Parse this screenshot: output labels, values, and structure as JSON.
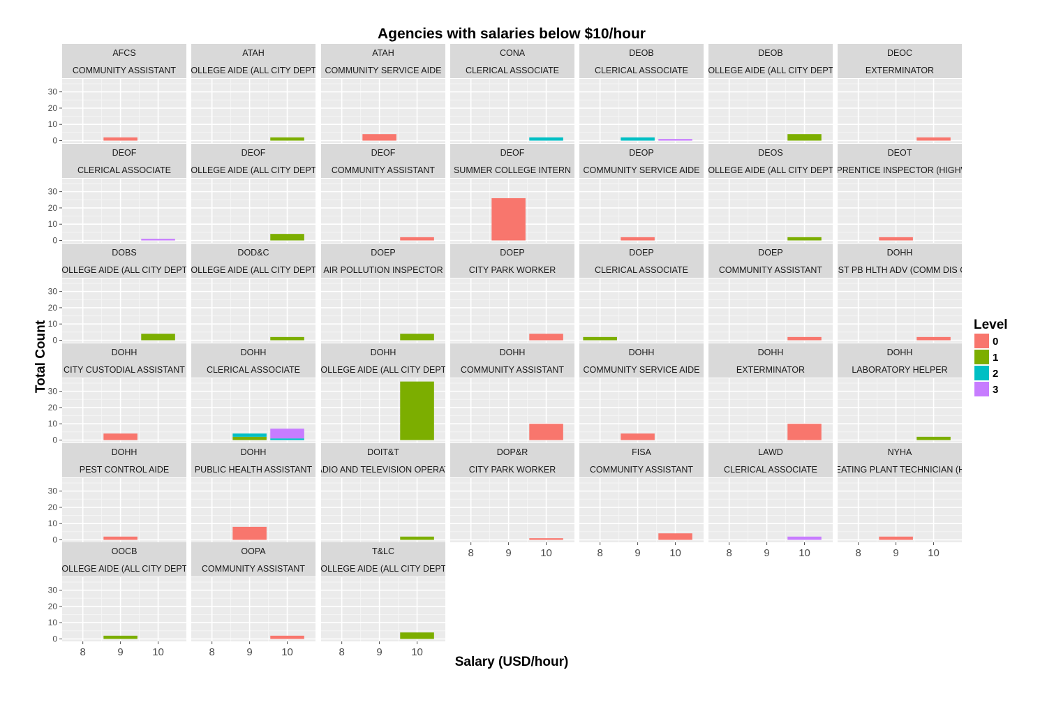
{
  "chart_data": {
    "type": "bar",
    "title": "Agencies with salaries below $10/hour",
    "xlabel": "Salary (USD/hour)",
    "ylabel": "Total Count",
    "x_ticks": [
      "8",
      "9",
      "10"
    ],
    "x_range": [
      7.45,
      10.75
    ],
    "y_ticks": [
      0,
      10,
      20,
      30
    ],
    "ylim": [
      -1.5,
      38
    ],
    "grid": true,
    "legend": {
      "title": "Level",
      "position": "right",
      "entries": [
        {
          "label": "0",
          "color": "#F8766D"
        },
        {
          "label": "1",
          "color": "#7CAE00"
        },
        {
          "label": "2",
          "color": "#00BFC4"
        },
        {
          "label": "3",
          "color": "#C77CFF"
        }
      ]
    },
    "facets": [
      {
        "agency": "AFCS",
        "title": "COMMUNITY ASSISTANT",
        "bars": [
          {
            "x": 9,
            "level": "0",
            "count": 2
          }
        ]
      },
      {
        "agency": "ATAH",
        "title": "COLLEGE AIDE (ALL CITY DEPTS",
        "bars": [
          {
            "x": 10,
            "level": "1",
            "count": 2
          }
        ]
      },
      {
        "agency": "ATAH",
        "title": "COMMUNITY SERVICE AIDE",
        "bars": [
          {
            "x": 9,
            "level": "0",
            "count": 4
          }
        ]
      },
      {
        "agency": "CONA",
        "title": "CLERICAL ASSOCIATE",
        "bars": [
          {
            "x": 10,
            "level": "2",
            "count": 2
          }
        ]
      },
      {
        "agency": "DEOB",
        "title": "CLERICAL ASSOCIATE",
        "bars": [
          {
            "x": 9,
            "level": "2",
            "count": 2
          },
          {
            "x": 10,
            "level": "3",
            "count": 1
          }
        ]
      },
      {
        "agency": "DEOB",
        "title": "COLLEGE AIDE (ALL CITY DEPTS",
        "bars": [
          {
            "x": 10,
            "level": "1",
            "count": 4
          }
        ]
      },
      {
        "agency": "DEOC",
        "title": "EXTERMINATOR",
        "bars": [
          {
            "x": 10,
            "level": "0",
            "count": 2
          }
        ]
      },
      {
        "agency": "DEOF",
        "title": "CLERICAL ASSOCIATE",
        "bars": [
          {
            "x": 10,
            "level": "3",
            "count": 1
          }
        ]
      },
      {
        "agency": "DEOF",
        "title": "COLLEGE AIDE (ALL CITY DEPTS",
        "bars": [
          {
            "x": 10,
            "level": "1",
            "count": 4
          }
        ]
      },
      {
        "agency": "DEOF",
        "title": "COMMUNITY ASSISTANT",
        "bars": [
          {
            "x": 10,
            "level": "0",
            "count": 2
          }
        ]
      },
      {
        "agency": "DEOF",
        "title": "SUMMER COLLEGE INTERN",
        "bars": [
          {
            "x": 9,
            "level": "0",
            "count": 26
          }
        ]
      },
      {
        "agency": "DEOP",
        "title": "COMMUNITY SERVICE AIDE",
        "bars": [
          {
            "x": 9,
            "level": "0",
            "count": 2
          }
        ]
      },
      {
        "agency": "DEOS",
        "title": "COLLEGE AIDE (ALL CITY DEPTS",
        "bars": [
          {
            "x": 10,
            "level": "1",
            "count": 2
          }
        ]
      },
      {
        "agency": "DEOT",
        "title": "APPRENTICE INSPECTOR (HIGHWA",
        "bars": [
          {
            "x": 9,
            "level": "0",
            "count": 2
          }
        ]
      },
      {
        "agency": "DOBS",
        "title": "COLLEGE AIDE (ALL CITY DEPTS",
        "bars": [
          {
            "x": 10,
            "level": "1",
            "count": 4
          }
        ]
      },
      {
        "agency": "DOD&C",
        "title": "COLLEGE AIDE (ALL CITY DEPTS",
        "bars": [
          {
            "x": 10,
            "level": "1",
            "count": 2
          }
        ]
      },
      {
        "agency": "DOEP",
        "title": "AIR POLLUTION INSPECTOR",
        "bars": [
          {
            "x": 10,
            "level": "1",
            "count": 4
          }
        ]
      },
      {
        "agency": "DOEP",
        "title": "CITY PARK WORKER",
        "bars": [
          {
            "x": 10,
            "level": "0",
            "count": 4
          }
        ]
      },
      {
        "agency": "DOEP",
        "title": "CLERICAL ASSOCIATE",
        "bars": [
          {
            "x": 8,
            "level": "1",
            "count": 2
          }
        ]
      },
      {
        "agency": "DOEP",
        "title": "COMMUNITY ASSISTANT",
        "bars": [
          {
            "x": 10,
            "level": "0",
            "count": 2
          }
        ]
      },
      {
        "agency": "DOHH",
        "title": "ASST PB HLTH ADV (COMM DIS CO",
        "bars": [
          {
            "x": 10,
            "level": "0",
            "count": 2
          }
        ]
      },
      {
        "agency": "DOHH",
        "title": "CITY CUSTODIAL ASSISTANT",
        "bars": [
          {
            "x": 9,
            "level": "0",
            "count": 4
          }
        ]
      },
      {
        "agency": "DOHH",
        "title": "CLERICAL ASSOCIATE",
        "bars": [
          {
            "x": 9,
            "level": "1",
            "count": 2
          },
          {
            "x": 9,
            "level": "2",
            "count": 2
          },
          {
            "x": 10,
            "level": "2",
            "count": 1
          },
          {
            "x": 10,
            "level": "3",
            "count": 6
          }
        ]
      },
      {
        "agency": "DOHH",
        "title": "COLLEGE AIDE (ALL CITY DEPTS",
        "bars": [
          {
            "x": 10,
            "level": "1",
            "count": 36
          }
        ]
      },
      {
        "agency": "DOHH",
        "title": "COMMUNITY ASSISTANT",
        "bars": [
          {
            "x": 10,
            "level": "0",
            "count": 10
          }
        ]
      },
      {
        "agency": "DOHH",
        "title": "COMMUNITY SERVICE AIDE",
        "bars": [
          {
            "x": 9,
            "level": "0",
            "count": 4
          }
        ]
      },
      {
        "agency": "DOHH",
        "title": "EXTERMINATOR",
        "bars": [
          {
            "x": 10,
            "level": "0",
            "count": 10
          }
        ]
      },
      {
        "agency": "DOHH",
        "title": "LABORATORY HELPER",
        "bars": [
          {
            "x": 10,
            "level": "1",
            "count": 2
          }
        ]
      },
      {
        "agency": "DOHH",
        "title": "PEST CONTROL AIDE",
        "bars": [
          {
            "x": 9,
            "level": "0",
            "count": 2
          }
        ]
      },
      {
        "agency": "DOHH",
        "title": "PUBLIC HEALTH ASSISTANT",
        "bars": [
          {
            "x": 9,
            "level": "0",
            "count": 8
          }
        ]
      },
      {
        "agency": "DOIT&T",
        "title": "RADIO AND TELEVISION OPERATO",
        "bars": [
          {
            "x": 10,
            "level": "1",
            "count": 2
          }
        ]
      },
      {
        "agency": "DOP&R",
        "title": "CITY PARK WORKER",
        "bars": [
          {
            "x": 10,
            "level": "0",
            "count": 1
          }
        ]
      },
      {
        "agency": "FISA",
        "title": "COMMUNITY ASSISTANT",
        "bars": [
          {
            "x": 10,
            "level": "0",
            "count": 4
          }
        ]
      },
      {
        "agency": "LAWD",
        "title": "CLERICAL ASSOCIATE",
        "bars": [
          {
            "x": 10,
            "level": "3",
            "count": 2
          }
        ]
      },
      {
        "agency": "NYHA",
        "title": "HEATING PLANT TECHNICIAN (HA",
        "bars": [
          {
            "x": 9,
            "level": "0",
            "count": 2
          }
        ]
      },
      {
        "agency": "OOCB",
        "title": "COLLEGE AIDE (ALL CITY DEPTS",
        "bars": [
          {
            "x": 9,
            "level": "1",
            "count": 2
          }
        ]
      },
      {
        "agency": "OOPA",
        "title": "COMMUNITY ASSISTANT",
        "bars": [
          {
            "x": 10,
            "level": "0",
            "count": 2
          }
        ]
      },
      {
        "agency": "T&LC",
        "title": "COLLEGE AIDE (ALL CITY DEPTS",
        "bars": [
          {
            "x": 10,
            "level": "1",
            "count": 4
          }
        ]
      }
    ]
  }
}
